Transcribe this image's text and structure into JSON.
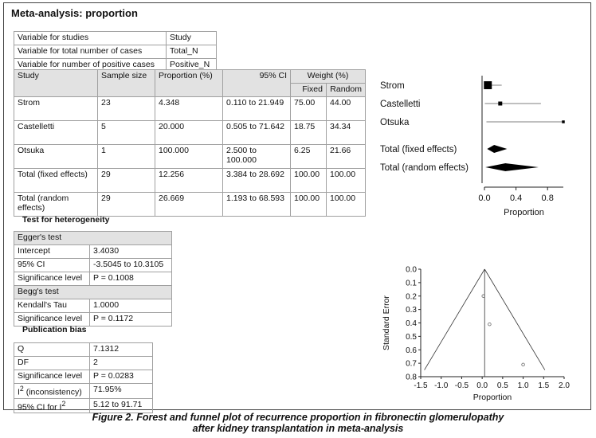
{
  "title": "Meta-analysis: proportion",
  "variables": [
    {
      "label": "Variable for studies",
      "value": "Study"
    },
    {
      "label": "Variable for total number of cases",
      "value": "Total_N"
    },
    {
      "label": "Variable for number of positive cases",
      "value": "Positive_N"
    }
  ],
  "main_table": {
    "headers": {
      "study": "Study",
      "sample": "Sample size",
      "proportion": "Proportion (%)",
      "ci": "95% CI",
      "weight": "Weight (%)",
      "fixed": "Fixed",
      "random": "Random"
    },
    "rows": [
      {
        "study": "Strom",
        "sample": "23",
        "proportion": "4.348",
        "ci": "0.110 to 21.949",
        "fixed": "75.00",
        "random": "44.00"
      },
      {
        "study": "Castelletti",
        "sample": "5",
        "proportion": "20.000",
        "ci": "0.505 to 71.642",
        "fixed": "18.75",
        "random": "34.34"
      },
      {
        "study": "Otsuka",
        "sample": "1",
        "proportion": "100.000",
        "ci": "2.500 to 100.000",
        "fixed": "6.25",
        "random": "21.66"
      },
      {
        "study": "Total (fixed effects)",
        "sample": "29",
        "proportion": "12.256",
        "ci": "3.384 to 28.692",
        "fixed": "100.00",
        "random": "100.00"
      },
      {
        "study": "Total (random effects)",
        "sample": "29",
        "proportion": "26.669",
        "ci": "1.193 to 68.593",
        "fixed": "100.00",
        "random": "100.00"
      }
    ]
  },
  "heterogeneity_title": "Test for heterogeneity",
  "eggers": {
    "title": "Egger's test",
    "rows": [
      {
        "label": "Intercept",
        "value": "3.4030"
      },
      {
        "label": "95% CI",
        "value": "-3.5045 to 10.3105"
      },
      {
        "label": "Significance level",
        "value": "P = 0.1008"
      }
    ]
  },
  "beggs": {
    "title": "Begg's test",
    "rows": [
      {
        "label": "Kendall's Tau",
        "value": "1.0000"
      },
      {
        "label": "Significance level",
        "value": "P = 0.1172"
      }
    ]
  },
  "bias_title": "Publication bias",
  "bias_rows": [
    {
      "label": "Q",
      "value": "7.1312"
    },
    {
      "label": "DF",
      "value": "2"
    },
    {
      "label": "Significance level",
      "value": "P = 0.0283"
    },
    {
      "label_main": "I",
      "label_sup": "2",
      "label_rest": " (inconsistency)",
      "value": "71.95%"
    },
    {
      "label_main": "95% CI for I",
      "label_sup": "2",
      "label_rest": "",
      "value": "5.12 to 91.71"
    }
  ],
  "chart_data": [
    {
      "type": "forest",
      "xlabel": "Proportion",
      "xlim": [
        0,
        1
      ],
      "xticks": [
        "0.0",
        "0.4",
        "0.8"
      ],
      "series": [
        {
          "name": "Strom",
          "estimate": 0.043,
          "lo": 0.001,
          "hi": 0.219,
          "weight": 75.0,
          "kind": "study"
        },
        {
          "name": "Castelletti",
          "estimate": 0.2,
          "lo": 0.005,
          "hi": 0.716,
          "weight": 18.75,
          "kind": "study"
        },
        {
          "name": "Otsuka",
          "estimate": 1.0,
          "lo": 0.025,
          "hi": 1.0,
          "weight": 6.25,
          "kind": "study"
        },
        {
          "name": "Total (fixed effects)",
          "estimate": 0.123,
          "lo": 0.034,
          "hi": 0.287,
          "kind": "pooled"
        },
        {
          "name": "Total (random effects)",
          "estimate": 0.267,
          "lo": 0.012,
          "hi": 0.686,
          "kind": "pooled"
        }
      ]
    },
    {
      "type": "scatter",
      "xlabel": "Proportion",
      "ylabel": "Standard Error",
      "xlim": [
        -1.5,
        2.0
      ],
      "ylim": [
        0.8,
        0.0
      ],
      "xticks": [
        "-1.5",
        "-1.0",
        "-0.5",
        "0.0",
        "0.5",
        "1.0",
        "1.5",
        "2.0"
      ],
      "yticks": [
        "0.0",
        "0.1",
        "0.2",
        "0.3",
        "0.4",
        "0.5",
        "0.6",
        "0.7",
        "0.8"
      ],
      "pooled_estimate": 0.06,
      "points": [
        {
          "x": 0.03,
          "y": 0.2
        },
        {
          "x": 0.18,
          "y": 0.41
        },
        {
          "x": 1.0,
          "y": 0.71
        }
      ]
    }
  ],
  "caption": {
    "line1": "Figure 2. Forest and funnel plot of recurrence proportion in fibronectin glomerulopathy",
    "line2": "after kidney transplantation in meta-analysis"
  }
}
